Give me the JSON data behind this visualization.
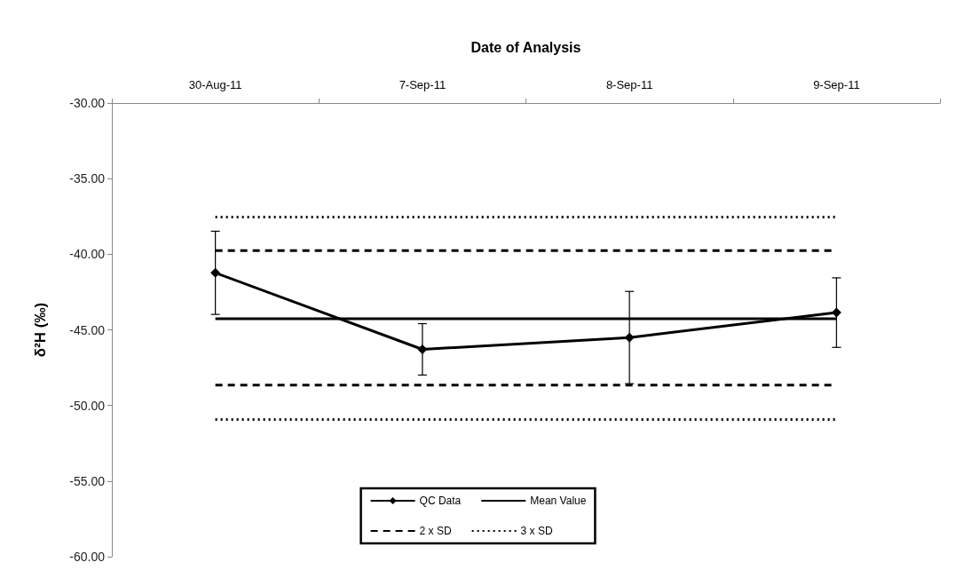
{
  "chart_data": {
    "type": "line",
    "xlabel": "Date of Analysis",
    "ylabel": "δ²H (‰)",
    "categories": [
      "30-Aug-11",
      "7-Sep-11",
      "8-Sep-11",
      "9-Sep-11"
    ],
    "series": [
      {
        "name": "QC Data",
        "color": "#000000",
        "values": [
          -41.23,
          -46.29,
          -45.51,
          -43.86
        ],
        "errors": [
          2.75,
          1.7,
          3.05,
          2.3
        ]
      }
    ],
    "marker": "diamond",
    "ref_lines": [
      {
        "axis": "y",
        "value": -44.26,
        "label": "Mean Value",
        "color": "#000000",
        "line_style": "solid"
      },
      {
        "axis": "y",
        "value": -39.76,
        "label": "2 x SD",
        "color": "#000000",
        "line_style": "dashed"
      },
      {
        "axis": "y",
        "value": -48.65,
        "label": null,
        "color": "#000000",
        "line_style": "dashed"
      },
      {
        "axis": "y",
        "value": -37.54,
        "label": "3 x SD",
        "color": "#000000",
        "line_style": "dotted"
      },
      {
        "axis": "y",
        "value": -50.93,
        "label": null,
        "color": "#000000",
        "line_style": "dotted"
      }
    ],
    "ylim": [
      -60,
      -30
    ],
    "yticks": [
      {
        "value": -60,
        "label": "-60.00"
      },
      {
        "value": -55,
        "label": "-55.00"
      },
      {
        "value": -50,
        "label": "-50.00"
      },
      {
        "value": -45,
        "label": "-45.00"
      },
      {
        "value": -40,
        "label": "-40.00"
      },
      {
        "value": -35,
        "label": "-35.00"
      },
      {
        "value": -30,
        "label": "-30.00"
      }
    ],
    "grid": false,
    "legend": "bottom"
  }
}
